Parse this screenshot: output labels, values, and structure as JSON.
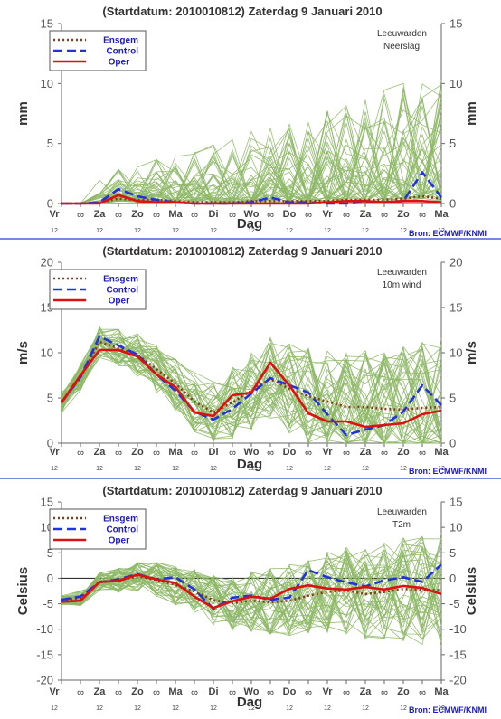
{
  "colors": {
    "ensemble": "#8db866",
    "ensgem": "#8b3a1a",
    "control": "#2233dd",
    "oper": "#dd1111",
    "separator": "#2244cc",
    "zero_line": "#333333"
  },
  "x_axis": {
    "label": "Dag",
    "day_labels": [
      "Vr",
      "Za",
      "Zo",
      "Ma",
      "Di",
      "Wo",
      "Do",
      "Vr",
      "Za",
      "Zo",
      "Ma"
    ],
    "half_day_marker": "∞",
    "hour_label": "12"
  },
  "legend": {
    "ensgem": "Ensgem",
    "control": "Control",
    "oper": "Oper"
  },
  "source_label": "Bron: ECMWF/KNMI",
  "chart_data": [
    {
      "type": "line",
      "title": "(Startdatum: 2010010812)   Zaterdag   9 Januari   2010",
      "location": "Leeuwarden",
      "variable": "Neerslag",
      "ylabel": "mm",
      "ylim": [
        0,
        15
      ],
      "yticks": [
        0,
        5,
        10,
        15
      ],
      "x": [
        0,
        0.5,
        1,
        1.5,
        2,
        2.5,
        3,
        3.5,
        4,
        4.5,
        5,
        5.5,
        6,
        6.5,
        7,
        7.5,
        8,
        8.5,
        9,
        9.5,
        10
      ],
      "series": [
        {
          "name": "Ensgem",
          "values": [
            0,
            0,
            0.1,
            0.4,
            0.3,
            0.3,
            0.2,
            0.1,
            0.1,
            0.1,
            0.2,
            0.2,
            0.2,
            0.2,
            0.2,
            0.3,
            0.3,
            0.3,
            0.4,
            0.6,
            0.4
          ]
        },
        {
          "name": "Control",
          "values": [
            0,
            0,
            0.1,
            1.2,
            0.6,
            0.3,
            0.1,
            0,
            0,
            0,
            0.1,
            0.5,
            0.1,
            0.1,
            0,
            0,
            0.1,
            0.1,
            0.2,
            2.6,
            0.5
          ]
        },
        {
          "name": "Oper",
          "values": [
            0,
            0,
            0,
            0.7,
            0.2,
            0.1,
            0.1,
            0,
            0,
            0,
            0,
            0,
            0,
            0,
            0.1,
            0.2,
            0.2,
            0.1,
            0.2,
            0.2,
            0.1
          ]
        }
      ]
    },
    {
      "type": "line",
      "title": "(Startdatum: 2010010812)   Zaterdag   9 Januari   2010",
      "location": "Leeuwarden",
      "variable": "10m wind",
      "ylabel": "m/s",
      "ylim": [
        0,
        20
      ],
      "yticks": [
        0,
        5,
        10,
        15,
        20
      ],
      "x": [
        0,
        0.5,
        1,
        1.5,
        2,
        2.5,
        3,
        3.5,
        4,
        4.5,
        5,
        5.5,
        6,
        6.5,
        7,
        7.5,
        8,
        8.5,
        9,
        9.5,
        10
      ],
      "series": [
        {
          "name": "Ensgem",
          "values": [
            4.5,
            7.3,
            11.2,
            10.5,
            9.8,
            8.2,
            6.6,
            4.6,
            3.4,
            4.5,
            5.8,
            7.1,
            6.0,
            5.2,
            4.6,
            4.0,
            4.0,
            3.8,
            3.7,
            3.9,
            4.0
          ]
        },
        {
          "name": "Control",
          "values": [
            4.5,
            7.3,
            11.8,
            10.8,
            9.8,
            7.6,
            5.8,
            3.5,
            2.6,
            3.8,
            5.5,
            7.2,
            6.4,
            5.6,
            3.2,
            0.9,
            1.5,
            2.0,
            3.5,
            6.4,
            4.2
          ]
        },
        {
          "name": "Oper",
          "values": [
            4.5,
            7.5,
            10.3,
            10.3,
            9.6,
            7.6,
            6.2,
            3.4,
            3.0,
            5.3,
            5.6,
            8.9,
            6.4,
            3.3,
            2.4,
            2.4,
            1.8,
            2.0,
            2.2,
            3.2,
            3.6
          ]
        }
      ]
    },
    {
      "type": "line",
      "title": "(Startdatum: 2010010812)   Zaterdag   9 Januari   2010",
      "location": "Leeuwarden",
      "variable": "T2m",
      "ylabel": "Celsius",
      "ylim": [
        -20,
        15
      ],
      "yticks": [
        -20,
        -15,
        -10,
        -5,
        0,
        5,
        10,
        15
      ],
      "x": [
        0,
        0.5,
        1,
        1.5,
        2,
        2.5,
        3,
        3.5,
        4,
        4.5,
        5,
        5.5,
        6,
        6.5,
        7,
        7.5,
        8,
        8.5,
        9,
        9.5,
        10
      ],
      "series": [
        {
          "name": "Ensgem",
          "values": [
            -4.3,
            -3.9,
            -0.7,
            -0.5,
            0.4,
            -0.3,
            -1.3,
            -2.6,
            -4.3,
            -4.9,
            -4.4,
            -4.7,
            -4.4,
            -3.4,
            -2.7,
            -2.4,
            -3.1,
            -2.7,
            -2.1,
            -2.3,
            -2.3
          ]
        },
        {
          "name": "Control",
          "values": [
            -4.2,
            -3.6,
            -0.8,
            -0.2,
            0.8,
            -0.2,
            0.2,
            -2.2,
            -6.0,
            -3.8,
            -3.4,
            -4.2,
            -3.8,
            1.6,
            0.2,
            -0.8,
            -1.6,
            -0.4,
            0.2,
            -0.7,
            2.7
          ]
        },
        {
          "name": "Oper",
          "values": [
            -4.6,
            -4.4,
            -0.7,
            -0.5,
            0.7,
            -0.2,
            -0.9,
            -3.6,
            -5.8,
            -4.5,
            -3.6,
            -4.0,
            -2.1,
            -1.4,
            -2.0,
            -2.2,
            -1.7,
            -2.2,
            -1.5,
            -1.9,
            -3.1
          ]
        }
      ]
    }
  ]
}
